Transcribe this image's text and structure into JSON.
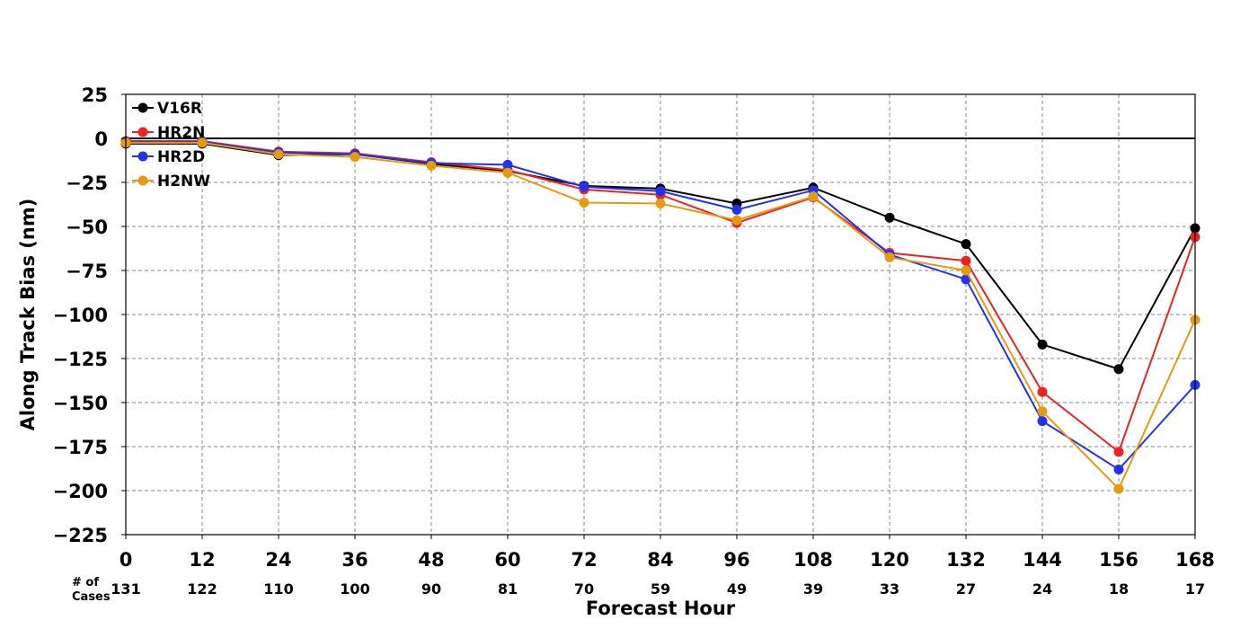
{
  "chart_data": {
    "type": "line",
    "xlabel": "Forecast Hour",
    "ylabel": "Along Track Bias (nm)",
    "x": [
      0,
      12,
      24,
      36,
      48,
      60,
      72,
      84,
      96,
      108,
      120,
      132,
      144,
      156,
      168
    ],
    "xticks": [
      "0",
      "12",
      "24",
      "36",
      "48",
      "60",
      "72",
      "84",
      "96",
      "108",
      "120",
      "132",
      "144",
      "156",
      "168"
    ],
    "yticks": [
      "25",
      "0",
      "−25",
      "−50",
      "−75",
      "−100",
      "−125",
      "−150",
      "−175",
      "−200",
      "−225"
    ],
    "ylim": [
      -225,
      25
    ],
    "xlim": [
      0,
      168
    ],
    "grid": true,
    "legend_position": "top-left",
    "cases_label_line1": "# of",
    "cases_label_line2": "Cases",
    "cases": [
      "131",
      "122",
      "110",
      "100",
      "90",
      "81",
      "70",
      "59",
      "49",
      "39",
      "33",
      "27",
      "24",
      "18",
      "17"
    ],
    "series": [
      {
        "name": "V16R",
        "color": "#000000",
        "values": [
          -3,
          -3,
          -9.5,
          -9,
          -14.5,
          -18.5,
          -27,
          -28.5,
          -37,
          -28,
          -45,
          -60,
          -117,
          -131,
          -51
        ]
      },
      {
        "name": "HR2N",
        "color": "#ee2222",
        "values": [
          -1.5,
          -1.5,
          -7.5,
          -8.5,
          -13.5,
          -18,
          -29,
          -32,
          -48,
          -33.5,
          -65,
          -69.5,
          -144,
          -178,
          -56
        ]
      },
      {
        "name": "HR2D",
        "color": "#2233ee",
        "values": [
          -2,
          -2,
          -8,
          -9,
          -14,
          -15,
          -27.5,
          -30,
          -40.5,
          -29.5,
          -66,
          -80,
          -160.5,
          -188,
          -140
        ]
      },
      {
        "name": "H2NW",
        "color": "#e69a10",
        "values": [
          -2.5,
          -2.5,
          -9,
          -10.5,
          -15.5,
          -19.5,
          -36.5,
          -37,
          -46.5,
          -33,
          -67.5,
          -75,
          -155,
          -199,
          -103
        ]
      }
    ]
  }
}
